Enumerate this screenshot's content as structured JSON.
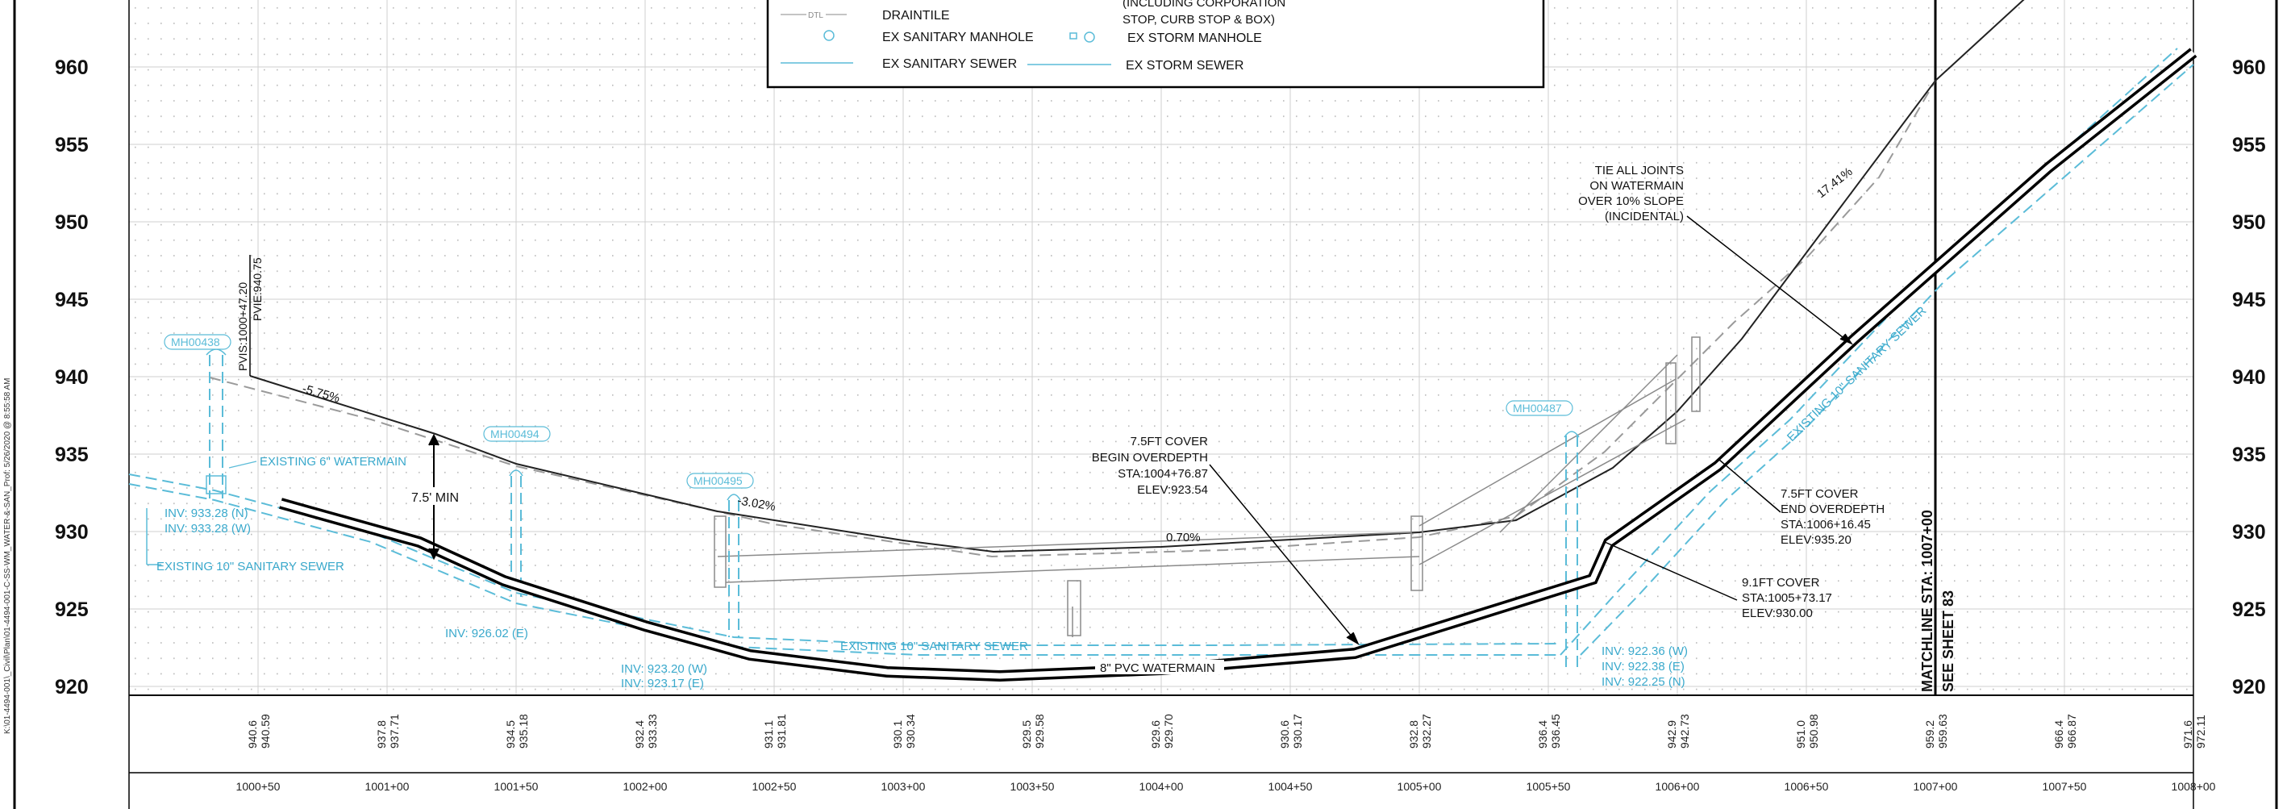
{
  "side_path": "K:\\01-4494-001\\_Civil\\Plan\\01-4494-001-C-SS-WM_WATER-&-SAN_Prof: 5/26/2020 @ 8:55:58 AM",
  "elev_labels": [
    "960",
    "955",
    "950",
    "945",
    "940",
    "935",
    "930",
    "925",
    "920"
  ],
  "station_labels": [
    "1000+50",
    "1001+00",
    "1001+50",
    "1002+00",
    "1002+50",
    "1003+00",
    "1003+50",
    "1004+00",
    "1004+50",
    "1005+00",
    "1005+50",
    "1006+00",
    "1006+50",
    "1007+00",
    "1007+50",
    "1008+00"
  ],
  "elev_pairs": [
    [
      "940.6",
      "940.59"
    ],
    [
      "937.8",
      "937.71"
    ],
    [
      "934.5",
      "935.18"
    ],
    [
      "932.4",
      "933.33"
    ],
    [
      "931.1",
      "931.81"
    ],
    [
      "930.1",
      "930.34"
    ],
    [
      "929.5",
      "929.58"
    ],
    [
      "929.6",
      "929.70"
    ],
    [
      "930.6",
      "930.17"
    ],
    [
      "932.8",
      "932.27"
    ],
    [
      "936.4",
      "936.45"
    ],
    [
      "942.9",
      "942.73"
    ],
    [
      "951.0",
      "950.98"
    ],
    [
      "959.2",
      "959.63"
    ],
    [
      "966.4",
      "966.87"
    ],
    [
      "971.6",
      "972.11"
    ]
  ],
  "legend": {
    "draintile_sym": "DTL",
    "draintile": "DRAINTILE",
    "corp_line1": "(INCLUDING CORPORATION",
    "corp_line2": "STOP, CURB STOP & BOX)",
    "san_mh": "EX SANITARY MANHOLE",
    "storm_mh": "EX STORM MANHOLE",
    "san_sewer": "EX SANITARY SEWER",
    "storm_sewer": "EX STORM SEWER"
  },
  "notes": {
    "pvi_sta": "PVIS:1000+47.20",
    "pvi_elev": "PVIE:940.75",
    "slope1": "-5.75%",
    "slope2": "-3.02%",
    "slope3": "0.70%",
    "slope4": "17.41%",
    "min_cover": "7.5' MIN",
    "mh438": "MH00438",
    "mh494": "MH00494",
    "mh495": "MH00495",
    "mh487": "MH00487",
    "existing_wm": "EXISTING 6\" WATERMAIN",
    "inv_n": "INV: 933.28 (N)",
    "inv_w": "INV: 933.28 (W)",
    "existing_san_left": "EXISTING 10\" SANITARY SEWER",
    "inv_494": "INV: 926.02 (E)",
    "inv_495_w": "INV: 923.20 (W)",
    "inv_495_e": "INV: 923.17 (E)",
    "existing_san_mid": "EXISTING 10\" SANITARY SEWER",
    "pvc_wm": "8\" PVC WATERMAIN",
    "inv_487_w": "INV: 922.36 (W)",
    "inv_487_e": "INV: 922.38 (E)",
    "inv_487_n": "INV: 922.25 (N)",
    "existing_san_right": "EXISTING 10\" SANITARY SEWER",
    "begin_od": [
      "7.5FT COVER",
      "BEGIN OVERDEPTH",
      "STA:1004+76.87",
      "ELEV:923.54"
    ],
    "end_od": [
      "7.5FT COVER",
      "END OVERDEPTH",
      "STA:1006+16.45",
      "ELEV:935.20"
    ],
    "cover91": [
      "9.1FT COVER",
      "STA:1005+73.17",
      "ELEV:930.00"
    ],
    "tie_joints": [
      "TIE ALL JOINTS",
      "ON WATERMAIN",
      "OVER 10% SLOPE",
      "(INCIDENTAL)"
    ],
    "matchline": "MATCHLINE STA: 1007+00",
    "see_sheet": "SEE SHEET 83"
  }
}
